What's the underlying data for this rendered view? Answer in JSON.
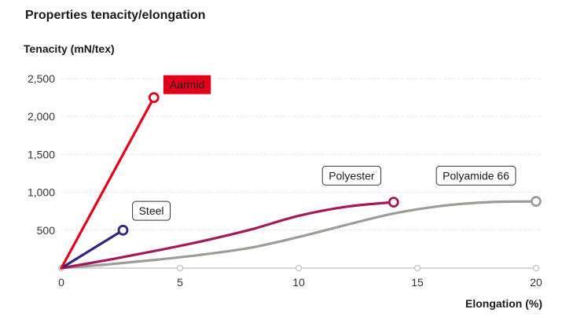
{
  "chart_data": {
    "type": "line",
    "title": "Properties tenacity/elongation",
    "ylabel": "Tenacity (mN/tex)",
    "xlabel": "Elongation (%)",
    "xlim": [
      0,
      20
    ],
    "ylim": [
      0,
      2500
    ],
    "xticks": [
      {
        "value": 0,
        "label": "0"
      },
      {
        "value": 5,
        "label": "5"
      },
      {
        "value": 10,
        "label": "10"
      },
      {
        "value": 15,
        "label": "15"
      },
      {
        "value": 20,
        "label": "20"
      }
    ],
    "yticks": [
      {
        "value": 500,
        "label": "500"
      },
      {
        "value": 1000,
        "label": "1,000"
      },
      {
        "value": 1500,
        "label": "1,500"
      },
      {
        "value": 2000,
        "label": "2,000"
      },
      {
        "value": 2500,
        "label": "2,500"
      }
    ],
    "grid": true,
    "series": [
      {
        "name": "Aarmid",
        "color": "#e2001a",
        "label_style": "filled",
        "label_anchor": [
          4.3,
          2410
        ],
        "x": [
          0,
          3.9
        ],
        "y": [
          0,
          2250
        ]
      },
      {
        "name": "Steel",
        "color": "#2e2585",
        "label_style": "outlined",
        "label_anchor": [
          3.0,
          745
        ],
        "x": [
          0,
          2.6
        ],
        "y": [
          0,
          500
        ]
      },
      {
        "name": "Polyester",
        "color": "#a3195b",
        "label_style": "outlined",
        "label_anchor": [
          11.0,
          1210
        ],
        "x": [
          0,
          2,
          4,
          6,
          8,
          10,
          12,
          14
        ],
        "y": [
          0,
          110,
          230,
          360,
          510,
          690,
          810,
          870
        ]
      },
      {
        "name": "Polyamide 66",
        "color": "#9d9d96",
        "label_style": "outlined",
        "label_anchor": [
          15.8,
          1210
        ],
        "x": [
          0,
          2,
          4,
          6,
          8,
          10,
          12,
          14,
          16,
          18,
          20
        ],
        "y": [
          0,
          50,
          110,
          180,
          270,
          410,
          570,
          720,
          820,
          870,
          880
        ]
      }
    ]
  }
}
